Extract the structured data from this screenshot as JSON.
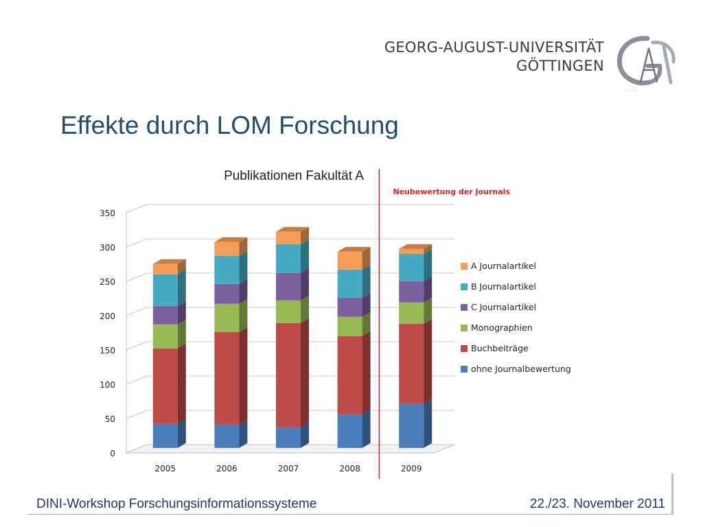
{
  "header": {
    "university_line1": "GEORG-AUGUST-UNIVERSITÄT",
    "university_line2": "GÖTTINGEN",
    "logo_icon": "university-seal-icon"
  },
  "slide": {
    "title": "Effekte durch LOM Forschung"
  },
  "chart_data": {
    "type": "bar",
    "stacked": true,
    "three_d": true,
    "title": "Publikationen Fakultät A",
    "xlabel": "",
    "ylabel": "",
    "ylim": [
      0,
      350
    ],
    "yticks": [
      0,
      50,
      100,
      150,
      200,
      250,
      300,
      350
    ],
    "grid": true,
    "legend_position": "right",
    "categories": [
      "2005",
      "2006",
      "2007",
      "2008",
      "2009"
    ],
    "series": [
      {
        "name": "ohne Journalbewertung",
        "color": "#4a7ebb",
        "values": [
          35,
          34,
          30,
          49,
          64
        ]
      },
      {
        "name": "Buchbeiträge",
        "color": "#be4b48",
        "values": [
          110,
          135,
          152,
          114,
          117
        ]
      },
      {
        "name": "Monographien",
        "color": "#98b954",
        "values": [
          35,
          41,
          33,
          28,
          31
        ]
      },
      {
        "name": "C Journalartikel",
        "color": "#7d60a0",
        "values": [
          27,
          29,
          40,
          28,
          31
        ]
      },
      {
        "name": "B Journalartikel",
        "color": "#46aac5",
        "values": [
          46,
          41,
          42,
          41,
          40
        ]
      },
      {
        "name": "A Journalartikel",
        "color": "#f59d56",
        "values": [
          15,
          20,
          18,
          26,
          7
        ]
      }
    ],
    "annotation": {
      "text": "Neubewertung der Journals",
      "color": "#e02020",
      "after_category": "2008"
    }
  },
  "footer": {
    "left": "DINI-Workshop Forschungsinformationssysteme",
    "right": "22./23. November 2011"
  }
}
